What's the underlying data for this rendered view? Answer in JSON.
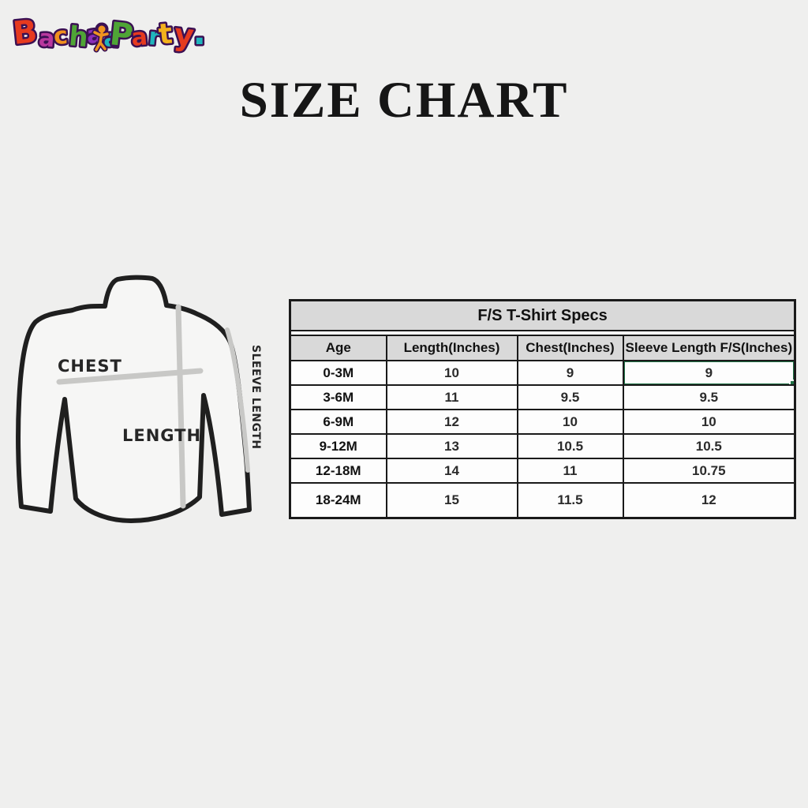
{
  "page": {
    "title": "SIZE CHART",
    "background": "#efefee"
  },
  "logo": {
    "brand": "Bachaa Party.",
    "outline_color": "#3b1053",
    "kid_color": "#f0941f",
    "bachaa_letters": [
      {
        "ch": "B",
        "color": "#e63a1f",
        "size": 40,
        "y": 50,
        "rot": -6
      },
      {
        "ch": "a",
        "color": "#b9379e",
        "size": 30,
        "y": 52,
        "rot": 4
      },
      {
        "ch": "c",
        "color": "#f08f1e",
        "size": 30,
        "y": 50,
        "rot": -4
      },
      {
        "ch": "h",
        "color": "#4fa436",
        "size": 34,
        "y": 51,
        "rot": 5
      },
      {
        "ch": "a",
        "color": "#8a2eb8",
        "size": 30,
        "y": 49,
        "rot": -5
      },
      {
        "ch": "a",
        "color": "#1fb5bd",
        "size": 30,
        "y": 52,
        "rot": 4
      }
    ],
    "party_letters": [
      {
        "ch": "P",
        "color": "#4fa436",
        "size": 40,
        "y": 50,
        "rot": 6
      },
      {
        "ch": "a",
        "color": "#e63a1f",
        "size": 30,
        "y": 52,
        "rot": -5
      },
      {
        "ch": "r",
        "color": "#1fb5bd",
        "size": 30,
        "y": 50,
        "rot": 5
      },
      {
        "ch": "t",
        "color": "#f3b11c",
        "size": 36,
        "y": 50,
        "rot": -6
      },
      {
        "ch": "y",
        "color": "#e63a1f",
        "size": 38,
        "y": 50,
        "rot": 6
      },
      {
        "ch": ".",
        "color": "#1fb5bd",
        "size": 44,
        "y": 50,
        "rot": 0
      }
    ]
  },
  "diagram": {
    "chest_label": "CHEST",
    "length_label": "LENGTH",
    "sleeve_label": "SLEEVE LENGTH",
    "outline_color": "#1f1f1f",
    "measure_line_color": "#c8c8c6"
  },
  "chart_data": {
    "type": "table",
    "title": "F/S T-Shirt Specs",
    "columns": [
      "Age",
      "Length(Inches)",
      "Chest(Inches)",
      "Sleeve Length F/S(Inches)"
    ],
    "rows": [
      [
        "0-3M",
        "10",
        "9",
        "9"
      ],
      [
        "3-6M",
        "11",
        "9.5",
        "9.5"
      ],
      [
        "6-9M",
        "12",
        "10",
        "10"
      ],
      [
        "9-12M",
        "13",
        "10.5",
        "10.5"
      ],
      [
        "12-18M",
        "14",
        "11",
        "10.75"
      ],
      [
        "18-24M",
        "15",
        "11.5",
        "12"
      ]
    ],
    "selected_cell": {
      "row_index": 0,
      "col_index": 3,
      "value": "9"
    },
    "colors": {
      "header_bg": "#d9d9d9",
      "selection": "#1e7145",
      "border": "#1a1a1a"
    }
  }
}
